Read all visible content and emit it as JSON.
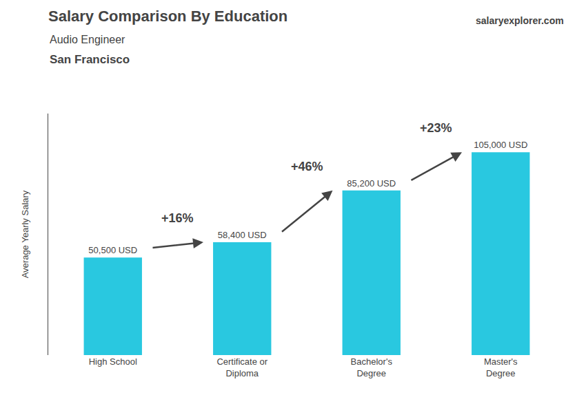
{
  "chart_data": {
    "type": "bar",
    "title": "Salary Comparison By Education",
    "subtitle": [
      "Audio Engineer",
      "San Francisco"
    ],
    "ylabel": "Average Yearly Salary",
    "categories": [
      "High School",
      "Certificate or\nDiploma",
      "Bachelor's\nDegree",
      "Master's\nDegree"
    ],
    "values": [
      50500,
      58400,
      85200,
      105000
    ],
    "value_labels": [
      "50,500 USD",
      "58,400 USD",
      "85,200 USD",
      "105,000 USD"
    ],
    "data_labels": true,
    "color": "#29c8e0",
    "ylim": [
      0,
      125000
    ],
    "tick_labels": "x",
    "grid": false,
    "annotations": [
      {
        "text": "+16%",
        "between": [
          "High School",
          "Certificate or\nDiploma"
        ]
      },
      {
        "text": "+46%",
        "between": [
          "Certificate or\nDiploma",
          "Bachelor's\nDegree"
        ]
      },
      {
        "text": "+23%",
        "between": [
          "Bachelor's\nDegree",
          "Master's\nDegree"
        ]
      },
      {
        "text": "salaryexplorer.com"
      }
    ]
  }
}
